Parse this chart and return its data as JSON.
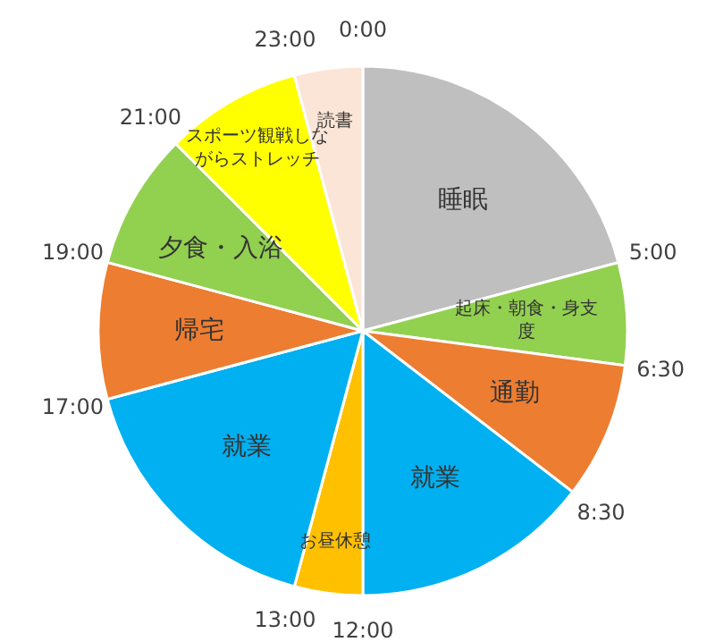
{
  "chart_data": {
    "type": "pie",
    "categories": [
      "睡眠",
      "起床・朝食・身支度",
      "通勤",
      "就業",
      "お昼休憩",
      "就業",
      "帰宅",
      "夕食・入浴",
      "スポーツ観戦しながらストレッチ",
      "読書"
    ],
    "values": [
      20.84,
      6.25,
      8.33,
      14.58,
      4.17,
      16.67,
      8.33,
      8.33,
      8.33,
      4.17
    ],
    "colors": [
      "#bfbfbf",
      "#92d050",
      "#ed7d31",
      "#00b0f0",
      "#ffc000",
      "#00b0f0",
      "#ed7d31",
      "#92d050",
      "#ffff00",
      "#fbe5d6"
    ],
    "annotations": [
      "0:00",
      "5:00",
      "6:30",
      "8:30",
      "12:00",
      "13:00",
      "17:00",
      "19:00",
      "21:00",
      "23:00"
    ]
  }
}
